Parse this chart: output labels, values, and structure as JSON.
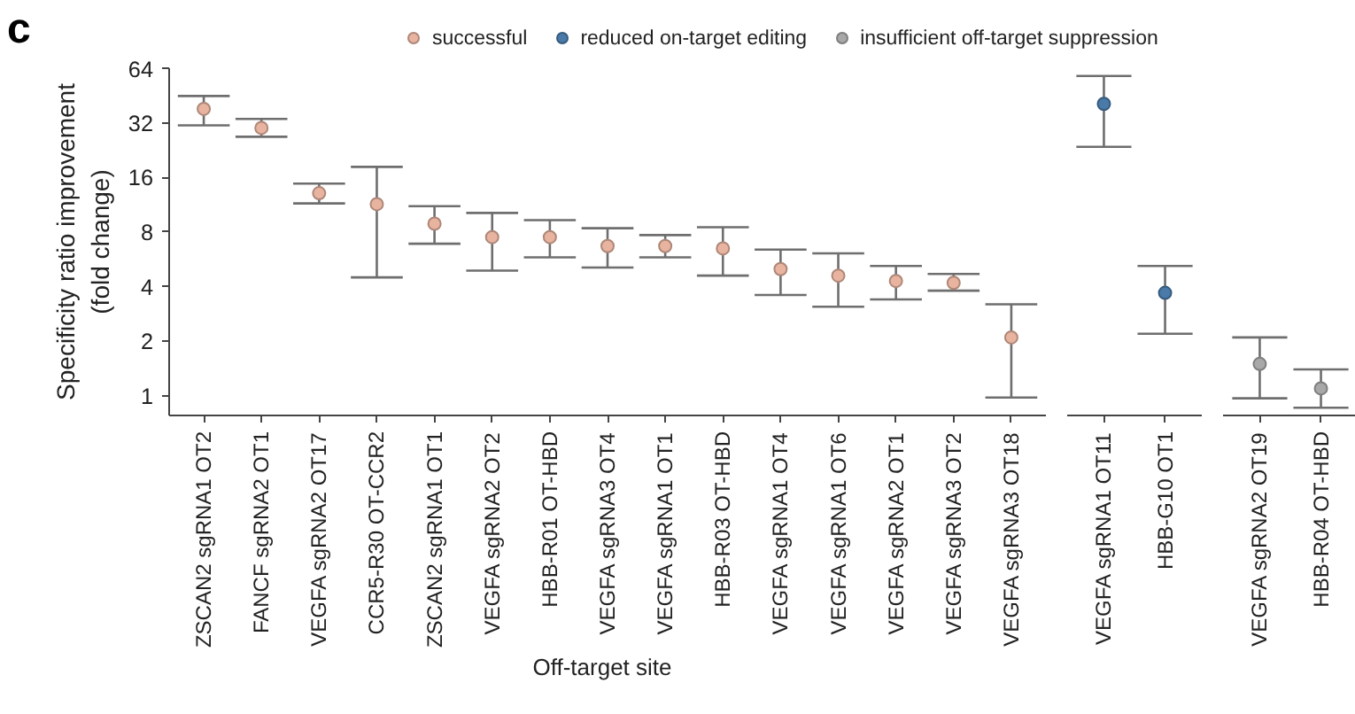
{
  "chart_data": [
    {
      "type": "scatter",
      "title": "c",
      "xlabel": "Off-target site",
      "ylabel": "Specificity ratio improvement\n(fold change)",
      "log": "y",
      "grid": false,
      "legend": "top",
      "marker": "circle",
      "ylim": [
        0.78,
        64
      ],
      "yticks": [
        1,
        2,
        4,
        8,
        16,
        32,
        64
      ],
      "categories": [
        "ZSCAN2 sgRNA1 OT2",
        "FANCF sgRNA2 OT1",
        "VEGFA sgRNA2 OT17",
        "CCR5-R30 OT-CCR2",
        "ZSCAN2 sgRNA1 OT1",
        "VEGFA sgRNA2 OT2",
        "HBB-R01 OT-HBD",
        "VEGFA sgRNA3 OT4",
        "VEGFA sgRNA1 OT1",
        "HBB-R03 OT-HBD",
        "VEGFA sgRNA1 OT4",
        "VEGFA sgRNA1 OT6",
        "VEGFA sgRNA2 OT1",
        "VEGFA sgRNA3 OT2",
        "VEGFA sgRNA3 OT18"
      ],
      "series": [
        {
          "name": "successful",
          "color": "#e8b4a0",
          "values": [
            38.2,
            30,
            13.1,
            11.4,
            8.9,
            7.5,
            7.5,
            6.7,
            6.7,
            6.5,
            5.0,
            4.6,
            4.3,
            4.2,
            2.1
          ],
          "errors": [
            [
              31,
              45
            ],
            [
              26.8,
              33.6
            ],
            [
              11.5,
              14.8
            ],
            [
              4.5,
              18.3
            ],
            [
              6.9,
              11.1
            ],
            [
              4.9,
              10.2
            ],
            [
              5.8,
              9.3
            ],
            [
              5.1,
              8.4
            ],
            [
              5.8,
              7.7
            ],
            [
              4.6,
              8.5
            ],
            [
              3.6,
              6.4
            ],
            [
              3.1,
              6.1
            ],
            [
              3.4,
              5.2
            ],
            [
              3.8,
              4.7
            ],
            [
              0.98,
              3.2
            ]
          ]
        }
      ]
    },
    {
      "type": "scatter",
      "log": "y",
      "grid": false,
      "legend": "top",
      "marker": "circle",
      "tick_labels": "x",
      "ylim": [
        0.78,
        64
      ],
      "yticks": [
        1,
        2,
        4,
        8,
        16,
        32,
        64
      ],
      "categories": [
        "VEGFA sgRNA1 OT11",
        "HBB-G10 OT1"
      ],
      "series": [
        {
          "name": "reduced on-target editing",
          "color": "#4a7aa8",
          "values": [
            40.7,
            3.7
          ],
          "errors": [
            [
              23.6,
              58
            ],
            [
              2.2,
              5.2
            ]
          ]
        }
      ]
    },
    {
      "type": "scatter",
      "log": "y",
      "grid": false,
      "legend": "top",
      "marker": "circle",
      "tick_labels": "x",
      "ylim": [
        0.78,
        64
      ],
      "yticks": [
        1,
        2,
        4,
        8,
        16,
        32,
        64
      ],
      "categories": [
        "VEGFA sgRNA2 OT19",
        "HBB-R04 OT-HBD"
      ],
      "series": [
        {
          "name": "insufficient off-target suppression",
          "color": "#a8a8a8",
          "values": [
            1.5,
            1.1
          ],
          "errors": [
            [
              0.97,
              2.1
            ],
            [
              0.86,
              1.4
            ]
          ]
        }
      ]
    }
  ]
}
